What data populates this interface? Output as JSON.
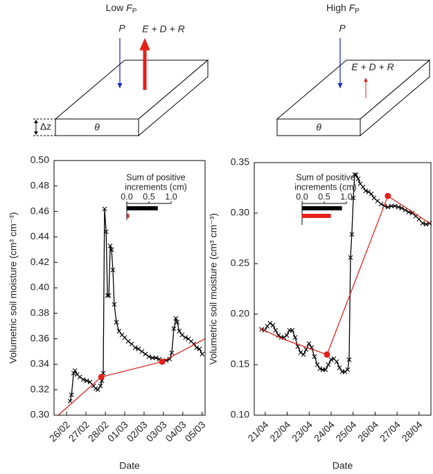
{
  "chart_data": [
    {
      "type": "line",
      "title": "Low ",
      "title_symbol": "F",
      "title_subscript": "P",
      "diagram": {
        "inflow_label": "P",
        "outflow_label": "E + D + R",
        "layer_label": "θ",
        "depth_label": "Δz"
      },
      "ylabel": "Volumetric soil moisture (cm³ cm⁻³)",
      "xlabel": "Date",
      "xlim": [
        -0.65,
        7.15
      ],
      "ylim": [
        0.3,
        0.5
      ],
      "xticks": [
        {
          "value": 0,
          "label": "26/02"
        },
        {
          "value": 1,
          "label": "27/02"
        },
        {
          "value": 2,
          "label": "28/02"
        },
        {
          "value": 3,
          "label": "01/03"
        },
        {
          "value": 4,
          "label": "02/03"
        },
        {
          "value": 5,
          "label": "03/03"
        },
        {
          "value": 6,
          "label": "04/03"
        },
        {
          "value": 7,
          "label": "05/03"
        }
      ],
      "yticks": [
        {
          "value": 0.3,
          "label": "0.30"
        },
        {
          "value": 0.32,
          "label": "0.32"
        },
        {
          "value": 0.34,
          "label": "0.34"
        },
        {
          "value": 0.36,
          "label": "0.36"
        },
        {
          "value": 0.38,
          "label": "0.38"
        },
        {
          "value": 0.4,
          "label": "0.40"
        },
        {
          "value": 0.42,
          "label": "0.42"
        },
        {
          "value": 0.44,
          "label": "0.44"
        },
        {
          "value": 0.46,
          "label": "0.46"
        },
        {
          "value": 0.48,
          "label": "0.48"
        },
        {
          "value": 0.5,
          "label": "0.50"
        }
      ],
      "series": [
        {
          "color": "#000000",
          "marker": "x",
          "line": true,
          "x": [
            0.18,
            0.25,
            0.36,
            0.43,
            0.54,
            0.68,
            0.86,
            1.04,
            1.21,
            1.39,
            1.5,
            1.61,
            1.75,
            1.82,
            1.89,
            1.96,
            2.04,
            2.11,
            2.18,
            2.25,
            2.32,
            2.39,
            2.46,
            2.57,
            2.71,
            2.86,
            3.0,
            3.18,
            3.36,
            3.54,
            3.71,
            3.89,
            4.07,
            4.25,
            4.43,
            4.61,
            4.79,
            4.96,
            5.14,
            5.32,
            5.43,
            5.54,
            5.64,
            5.71,
            5.82,
            5.96,
            6.14,
            6.29,
            6.43,
            6.57,
            6.71,
            6.86,
            7.0
          ],
          "values": [
            0.311,
            0.316,
            0.333,
            0.335,
            0.332,
            0.33,
            0.328,
            0.327,
            0.326,
            0.323,
            0.321,
            0.32,
            0.323,
            0.327,
            0.333,
            0.462,
            0.444,
            0.394,
            0.394,
            0.433,
            0.43,
            0.414,
            0.387,
            0.373,
            0.366,
            0.363,
            0.361,
            0.358,
            0.356,
            0.353,
            0.352,
            0.35,
            0.348,
            0.346,
            0.345,
            0.345,
            0.344,
            0.342,
            0.343,
            0.344,
            0.349,
            0.368,
            0.376,
            0.373,
            0.366,
            0.363,
            0.361,
            0.36,
            0.358,
            0.356,
            0.353,
            0.352,
            0.348
          ]
        },
        {
          "color": "#e3201b",
          "marker": "none",
          "line": true,
          "x": [
            -0.43,
            1.79,
            4.93,
            7.15
          ],
          "values": [
            0.3,
            0.33,
            0.342,
            0.36
          ]
        },
        {
          "color": "#e3201b",
          "marker": "circle",
          "line": false,
          "x": [
            1.79,
            4.93
          ],
          "values": [
            0.33,
            0.342
          ]
        }
      ],
      "inset": {
        "type": "bar",
        "title_lines": [
          "Sum of positive",
          "increments (cm)"
        ],
        "xlim": [
          0,
          1
        ],
        "xticks": [
          {
            "value": 0,
            "label": "0.0"
          },
          {
            "value": 0.5,
            "label": "0.5"
          },
          {
            "value": 1,
            "label": "1.0"
          }
        ],
        "series": [
          {
            "color": "#000000",
            "values": [
              0.7
            ]
          },
          {
            "color": "#e3201b",
            "values": [
              0.05
            ]
          }
        ]
      }
    },
    {
      "type": "line",
      "title": "High ",
      "title_symbol": "F",
      "title_subscript": "P",
      "diagram": {
        "inflow_label": "P",
        "outflow_label": "E + D + R",
        "layer_label": "θ"
      },
      "ylabel": "Volumetric soil moisture (cm³ cm⁻³)",
      "xlabel": "Date",
      "xlim": [
        -0.5,
        7.54
      ],
      "ylim": [
        0.1,
        0.35
      ],
      "xticks": [
        {
          "value": 0,
          "label": "21/04"
        },
        {
          "value": 1,
          "label": "22/04"
        },
        {
          "value": 2,
          "label": "23/04"
        },
        {
          "value": 3,
          "label": "24/04"
        },
        {
          "value": 4,
          "label": "25/04"
        },
        {
          "value": 5,
          "label": "26/04"
        },
        {
          "value": 6,
          "label": "27/04"
        },
        {
          "value": 7,
          "label": "28/04"
        }
      ],
      "yticks": [
        {
          "value": 0.1,
          "label": "0.10"
        },
        {
          "value": 0.15,
          "label": "0.15"
        },
        {
          "value": 0.2,
          "label": "0.20"
        },
        {
          "value": 0.25,
          "label": "0.25"
        },
        {
          "value": 0.3,
          "label": "0.30"
        },
        {
          "value": 0.35,
          "label": "0.35"
        }
      ],
      "series": [
        {
          "color": "#000000",
          "marker": "x",
          "line": true,
          "x": [
            -0.16,
            -0.03,
            0.09,
            0.22,
            0.35,
            0.47,
            0.6,
            0.73,
            0.85,
            0.98,
            1.1,
            1.23,
            1.36,
            1.48,
            1.61,
            1.74,
            1.86,
            1.99,
            2.11,
            2.24,
            2.37,
            2.49,
            2.62,
            2.74,
            2.87,
            3.0,
            3.12,
            3.25,
            3.38,
            3.5,
            3.63,
            3.75,
            3.82,
            3.88,
            3.94,
            4.01,
            4.07,
            4.13,
            4.23,
            4.32,
            4.45,
            4.57,
            4.7,
            4.83,
            4.95,
            5.11,
            5.27,
            5.43,
            5.58,
            5.74,
            5.9,
            6.06,
            6.21,
            6.37,
            6.53,
            6.69,
            6.85,
            7.0,
            7.16,
            7.32,
            7.48
          ],
          "values": [
            0.185,
            0.184,
            0.188,
            0.191,
            0.189,
            0.184,
            0.179,
            0.177,
            0.177,
            0.179,
            0.184,
            0.184,
            0.177,
            0.168,
            0.162,
            0.16,
            0.165,
            0.171,
            0.167,
            0.158,
            0.15,
            0.146,
            0.145,
            0.145,
            0.15,
            0.155,
            0.156,
            0.153,
            0.147,
            0.143,
            0.143,
            0.145,
            0.155,
            0.256,
            0.279,
            0.315,
            0.338,
            0.338,
            0.334,
            0.329,
            0.326,
            0.322,
            0.321,
            0.319,
            0.315,
            0.312,
            0.309,
            0.307,
            0.306,
            0.307,
            0.307,
            0.306,
            0.305,
            0.303,
            0.301,
            0.3,
            0.297,
            0.294,
            0.29,
            0.289,
            0.29
          ]
        },
        {
          "color": "#e3201b",
          "marker": "none",
          "line": true,
          "x": [
            -0.25,
            0.85,
            2.81,
            5.58,
            7.48
          ],
          "values": [
            0.186,
            0.175,
            0.16,
            0.317,
            0.29
          ]
        },
        {
          "color": "#e3201b",
          "marker": "circle",
          "line": false,
          "x": [
            2.81,
            5.58
          ],
          "values": [
            0.16,
            0.317
          ]
        }
      ],
      "inset": {
        "type": "bar",
        "title_lines": [
          "Sum of positive",
          "increments (cm)"
        ],
        "xlim": [
          0,
          1
        ],
        "xticks": [
          {
            "value": 0,
            "label": "0.0"
          },
          {
            "value": 0.5,
            "label": "0.5"
          },
          {
            "value": 1,
            "label": "1.0"
          }
        ],
        "series": [
          {
            "color": "#000000",
            "values": [
              0.9
            ]
          },
          {
            "color": "#e3201b",
            "values": [
              0.65
            ]
          }
        ]
      }
    }
  ]
}
